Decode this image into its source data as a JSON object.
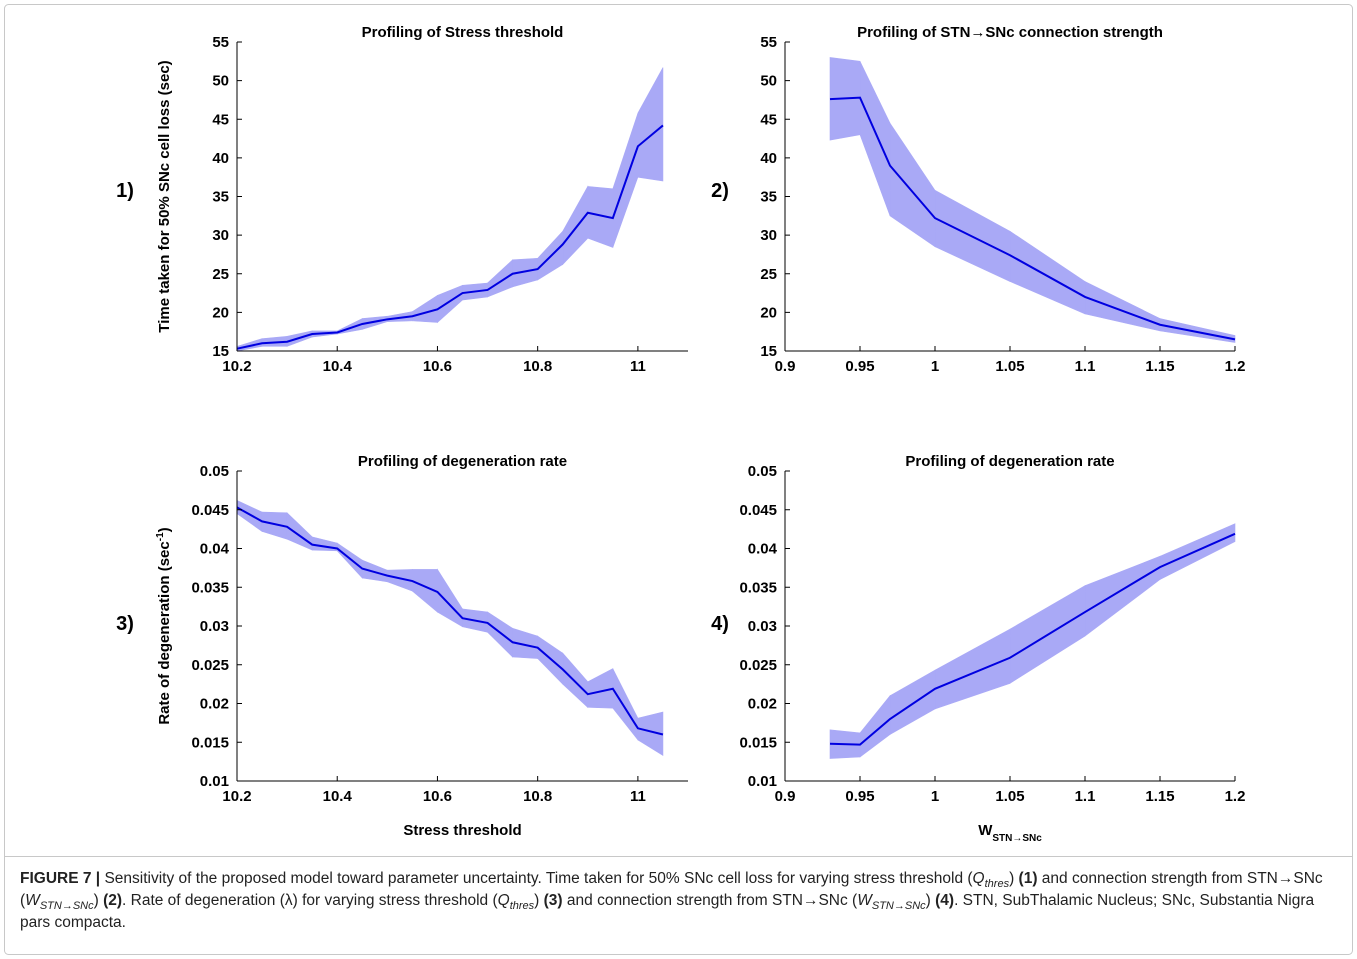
{
  "chart_data": [
    {
      "type": "line",
      "title": "Profiling of Stress threshold",
      "panel_label": "1)",
      "ylabel": "Time taken for 50% SNc cell loss (sec)",
      "x": [
        10.2,
        10.25,
        10.3,
        10.35,
        10.4,
        10.45,
        10.5,
        10.55,
        10.6,
        10.65,
        10.7,
        10.75,
        10.8,
        10.85,
        10.9,
        10.95,
        11,
        11.05
      ],
      "values": [
        15.3,
        16.0,
        16.2,
        17.2,
        17.4,
        18.5,
        19.1,
        19.5,
        20.4,
        22.5,
        22.9,
        25.0,
        25.6,
        28.8,
        32.9,
        32.2,
        41.5,
        44.2
      ],
      "upper": [
        15.6,
        16.6,
        16.9,
        17.6,
        17.6,
        19.2,
        19.5,
        20.1,
        22.2,
        23.5,
        23.8,
        26.8,
        27.0,
        30.5,
        36.3,
        36.0,
        45.8,
        51.7
      ],
      "lower": [
        15.0,
        15.6,
        15.6,
        16.8,
        17.2,
        17.8,
        18.8,
        18.9,
        18.7,
        21.6,
        22.0,
        23.3,
        24.2,
        26.2,
        29.6,
        28.4,
        37.5,
        37.0
      ],
      "xlim": [
        10.2,
        11.1
      ],
      "xticks": [
        10.2,
        10.4,
        10.6,
        10.8,
        11
      ],
      "ylim": [
        15,
        55
      ],
      "yticks": [
        15,
        20,
        25,
        30,
        35,
        40,
        45,
        50,
        55
      ],
      "color": "#0000e0",
      "band_color": "#a9a9f6"
    },
    {
      "type": "line",
      "title": "Profiling of STN→SNc connection strength",
      "panel_label": "2)",
      "x": [
        0.93,
        0.95,
        0.97,
        1,
        1.05,
        1.1,
        1.15,
        1.2
      ],
      "values": [
        47.6,
        47.8,
        39.0,
        32.2,
        27.4,
        22.0,
        18.4,
        16.5
      ],
      "upper": [
        53.0,
        52.5,
        44.5,
        35.8,
        30.5,
        24.0,
        19.2,
        17.0
      ],
      "lower": [
        42.3,
        43.0,
        32.5,
        28.5,
        24.0,
        19.8,
        17.6,
        16.1
      ],
      "xlim": [
        0.9,
        1.2
      ],
      "xticks": [
        0.9,
        0.95,
        1,
        1.05,
        1.1,
        1.15,
        1.2
      ],
      "ylim": [
        15,
        55
      ],
      "yticks": [
        15,
        20,
        25,
        30,
        35,
        40,
        45,
        50,
        55
      ],
      "color": "#0000e0",
      "band_color": "#a9a9f6"
    },
    {
      "type": "line",
      "title": "Profiling of degeneration rate",
      "panel_label": "3)",
      "ylabel": "Rate of degeneration (sec",
      "ylabel_sup": "-1",
      "ylabel_end": ")",
      "xlabel": "Stress threshold",
      "x": [
        10.2,
        10.25,
        10.3,
        10.35,
        10.4,
        10.45,
        10.5,
        10.55,
        10.6,
        10.65,
        10.7,
        10.75,
        10.8,
        10.85,
        10.9,
        10.95,
        11,
        11.05
      ],
      "values": [
        0.0453,
        0.0435,
        0.0428,
        0.0405,
        0.04,
        0.0374,
        0.0365,
        0.0358,
        0.0344,
        0.031,
        0.0304,
        0.0279,
        0.0272,
        0.0244,
        0.0212,
        0.0219,
        0.0168,
        0.016
      ],
      "upper": [
        0.0462,
        0.0447,
        0.0446,
        0.0415,
        0.0407,
        0.0385,
        0.0372,
        0.0373,
        0.0373,
        0.0322,
        0.0318,
        0.0297,
        0.0287,
        0.0265,
        0.0228,
        0.0245,
        0.0181,
        0.0189
      ],
      "lower": [
        0.0445,
        0.0422,
        0.0412,
        0.0398,
        0.0397,
        0.0362,
        0.0357,
        0.0345,
        0.0318,
        0.0299,
        0.0292,
        0.026,
        0.0258,
        0.0225,
        0.0195,
        0.0194,
        0.0153,
        0.0133
      ],
      "xlim": [
        10.2,
        11.1
      ],
      "xticks": [
        10.2,
        10.4,
        10.6,
        10.8,
        11
      ],
      "ylim": [
        0.01,
        0.05
      ],
      "yticks": [
        0.01,
        0.015,
        0.02,
        0.025,
        0.03,
        0.035,
        0.04,
        0.045,
        0.05
      ],
      "color": "#0000e0",
      "band_color": "#a9a9f6"
    },
    {
      "type": "line",
      "title": "Profiling of degeneration rate",
      "panel_label": "4)",
      "xlabel": "W",
      "xlabel_sub": "STN→SNc",
      "x": [
        0.93,
        0.95,
        0.97,
        1,
        1.05,
        1.1,
        1.15,
        1.2
      ],
      "values": [
        0.0148,
        0.0147,
        0.018,
        0.0219,
        0.0259,
        0.0318,
        0.0376,
        0.0419
      ],
      "upper": [
        0.0166,
        0.0162,
        0.021,
        0.0243,
        0.0296,
        0.0352,
        0.039,
        0.0432
      ],
      "lower": [
        0.0129,
        0.0131,
        0.016,
        0.0193,
        0.0226,
        0.0287,
        0.036,
        0.0409
      ],
      "xlim": [
        0.9,
        1.2
      ],
      "xticks": [
        0.9,
        0.95,
        1,
        1.05,
        1.1,
        1.15,
        1.2
      ],
      "ylim": [
        0.01,
        0.05
      ],
      "yticks": [
        0.01,
        0.015,
        0.02,
        0.025,
        0.03,
        0.035,
        0.04,
        0.045,
        0.05
      ],
      "color": "#0000e0",
      "band_color": "#a9a9f6"
    }
  ],
  "caption": [
    {
      "text": "FIGURE 7 |",
      "style": "b"
    },
    {
      "text": " Sensitivity of the proposed model toward parameter uncertainty. Time taken for 50% SNc cell loss for varying stress threshold (",
      "style": "n"
    },
    {
      "text": "Q",
      "style": "i"
    },
    {
      "text": "thres",
      "style": "isub"
    },
    {
      "text": ") ",
      "style": "n"
    },
    {
      "text": "(1)",
      "style": "b"
    },
    {
      "text": " and connection strength from STN→SNc (",
      "style": "n"
    },
    {
      "text": "W",
      "style": "i"
    },
    {
      "text": "STN→SNc",
      "style": "isub"
    },
    {
      "text": ") ",
      "style": "n"
    },
    {
      "text": "(2)",
      "style": "b"
    },
    {
      "text": ". Rate of degeneration (λ) for varying stress threshold (",
      "style": "n"
    },
    {
      "text": "Q",
      "style": "i"
    },
    {
      "text": "thres",
      "style": "isub"
    },
    {
      "text": ") ",
      "style": "n"
    },
    {
      "text": "(3)",
      "style": "b"
    },
    {
      "text": " and connection strength from STN→SNc (",
      "style": "n"
    },
    {
      "text": "W",
      "style": "i"
    },
    {
      "text": "STN→SNc",
      "style": "isub"
    },
    {
      "text": ") ",
      "style": "n"
    },
    {
      "text": "(4)",
      "style": "b"
    },
    {
      "text": ". STN, SubThalamic Nucleus; SNc, Substantia Nigra pars compacta.",
      "style": "n"
    }
  ]
}
